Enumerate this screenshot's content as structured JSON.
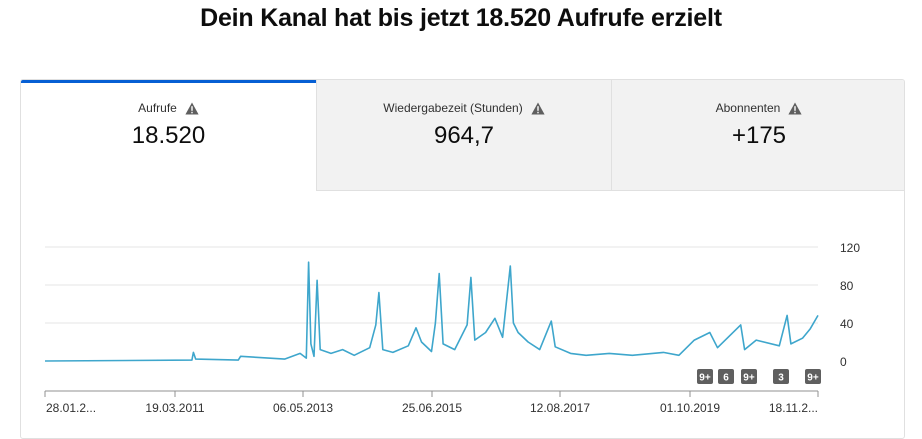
{
  "headline": "Dein Kanal hat bis jetzt 18.520 Aufrufe erzielt",
  "tabs": [
    {
      "label": "Aufrufe",
      "value": "18.520",
      "icon": "warning-icon",
      "active": true
    },
    {
      "label": "Wiedergabezeit (Stunden)",
      "value": "964,7",
      "icon": "warning-icon",
      "active": false
    },
    {
      "label": "Abonnenten",
      "value": "+175",
      "icon": "warning-icon",
      "active": false
    }
  ],
  "colors": {
    "accent": "#065fd4",
    "line": "#3ea6cc",
    "badge": "#5f5f5f"
  },
  "chart_data": {
    "type": "line",
    "ylim": [
      0,
      120
    ],
    "yticks": [
      "120",
      "80",
      "40",
      "0"
    ],
    "ytick_values": [
      120,
      80,
      40,
      0
    ],
    "xticks": [
      "28.01.2...",
      "19.03.2011",
      "06.05.2013",
      "25.06.2015",
      "12.08.2017",
      "01.10.2019",
      "18.11.2..."
    ],
    "grid": true,
    "series": [
      {
        "points": [
          [
            0,
            0
          ],
          [
            0.19,
            1
          ],
          [
            0.192,
            9
          ],
          [
            0.195,
            2
          ],
          [
            0.25,
            1
          ],
          [
            0.253,
            5
          ],
          [
            0.31,
            2
          ],
          [
            0.33,
            8
          ],
          [
            0.338,
            3
          ],
          [
            0.341,
            104
          ],
          [
            0.344,
            18
          ],
          [
            0.348,
            5
          ],
          [
            0.352,
            85
          ],
          [
            0.356,
            12
          ],
          [
            0.37,
            8
          ],
          [
            0.385,
            12
          ],
          [
            0.4,
            6
          ],
          [
            0.42,
            14
          ],
          [
            0.428,
            38
          ],
          [
            0.432,
            72
          ],
          [
            0.437,
            12
          ],
          [
            0.45,
            9
          ],
          [
            0.47,
            16
          ],
          [
            0.48,
            35
          ],
          [
            0.487,
            20
          ],
          [
            0.5,
            10
          ],
          [
            0.505,
            40
          ],
          [
            0.51,
            92
          ],
          [
            0.515,
            18
          ],
          [
            0.53,
            12
          ],
          [
            0.546,
            38
          ],
          [
            0.551,
            88
          ],
          [
            0.556,
            22
          ],
          [
            0.57,
            30
          ],
          [
            0.582,
            45
          ],
          [
            0.592,
            25
          ],
          [
            0.602,
            100
          ],
          [
            0.606,
            40
          ],
          [
            0.612,
            30
          ],
          [
            0.625,
            20
          ],
          [
            0.64,
            12
          ],
          [
            0.655,
            42
          ],
          [
            0.66,
            15
          ],
          [
            0.68,
            8
          ],
          [
            0.7,
            6
          ],
          [
            0.73,
            8
          ],
          [
            0.76,
            6
          ],
          [
            0.8,
            9
          ],
          [
            0.82,
            6
          ],
          [
            0.84,
            22
          ],
          [
            0.86,
            30
          ],
          [
            0.87,
            14
          ],
          [
            0.9,
            38
          ],
          [
            0.905,
            12
          ],
          [
            0.92,
            22
          ],
          [
            0.95,
            16
          ],
          [
            0.96,
            48
          ],
          [
            0.965,
            18
          ],
          [
            0.98,
            24
          ],
          [
            0.99,
            34
          ],
          [
            1,
            48
          ]
        ]
      }
    ],
    "annotation_badges": [
      "9+",
      "6",
      "9+",
      "3",
      "9+"
    ]
  }
}
